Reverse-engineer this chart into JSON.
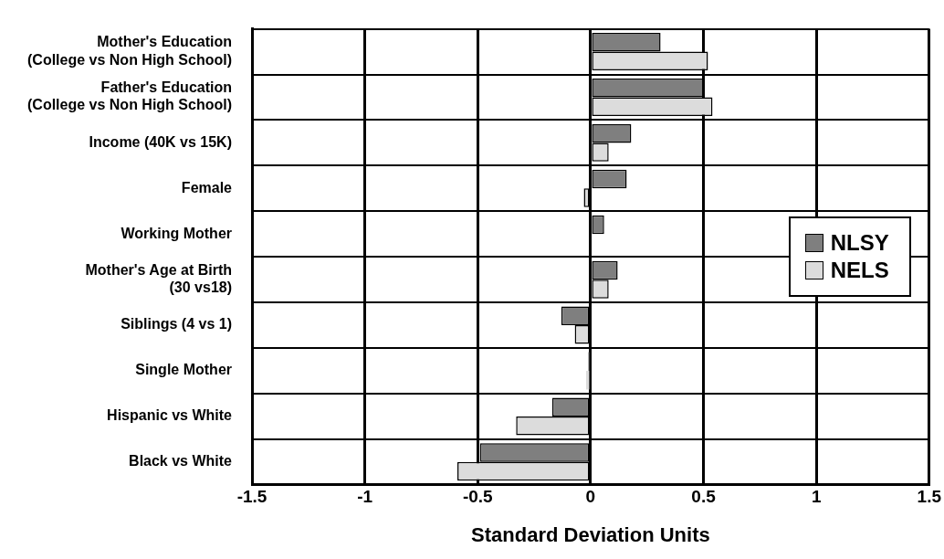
{
  "chart_data": {
    "type": "bar",
    "orientation": "horizontal",
    "xlabel": "Standard Deviation Units",
    "categories": [
      "Mother's Education\n(College vs Non High School)",
      "Father's Education\n(College vs Non High School)",
      "Income (40K vs 15K)",
      "Female",
      "Working Mother",
      "Mother's Age at Birth\n(30 vs18)",
      "Siblings (4 vs 1)",
      "Single Mother",
      "Hispanic vs White",
      "Black vs White"
    ],
    "series": [
      {
        "name": "NLSY",
        "color": "#7f7f7f",
        "values": [
          0.31,
          0.5,
          0.18,
          0.16,
          0.06,
          0.12,
          -0.13,
          -0.01,
          -0.17,
          -0.49
        ]
      },
      {
        "name": "NELS",
        "color": "#dcdcdc",
        "values": [
          0.52,
          0.54,
          0.08,
          -0.03,
          null,
          0.08,
          -0.07,
          -0.02,
          -0.33,
          -0.59
        ]
      }
    ],
    "xlim": [
      -1.5,
      1.5
    ],
    "xticks": [
      -1.5,
      -1,
      -0.5,
      0,
      0.5,
      1,
      1.5
    ],
    "grid": true,
    "legend": "right"
  }
}
